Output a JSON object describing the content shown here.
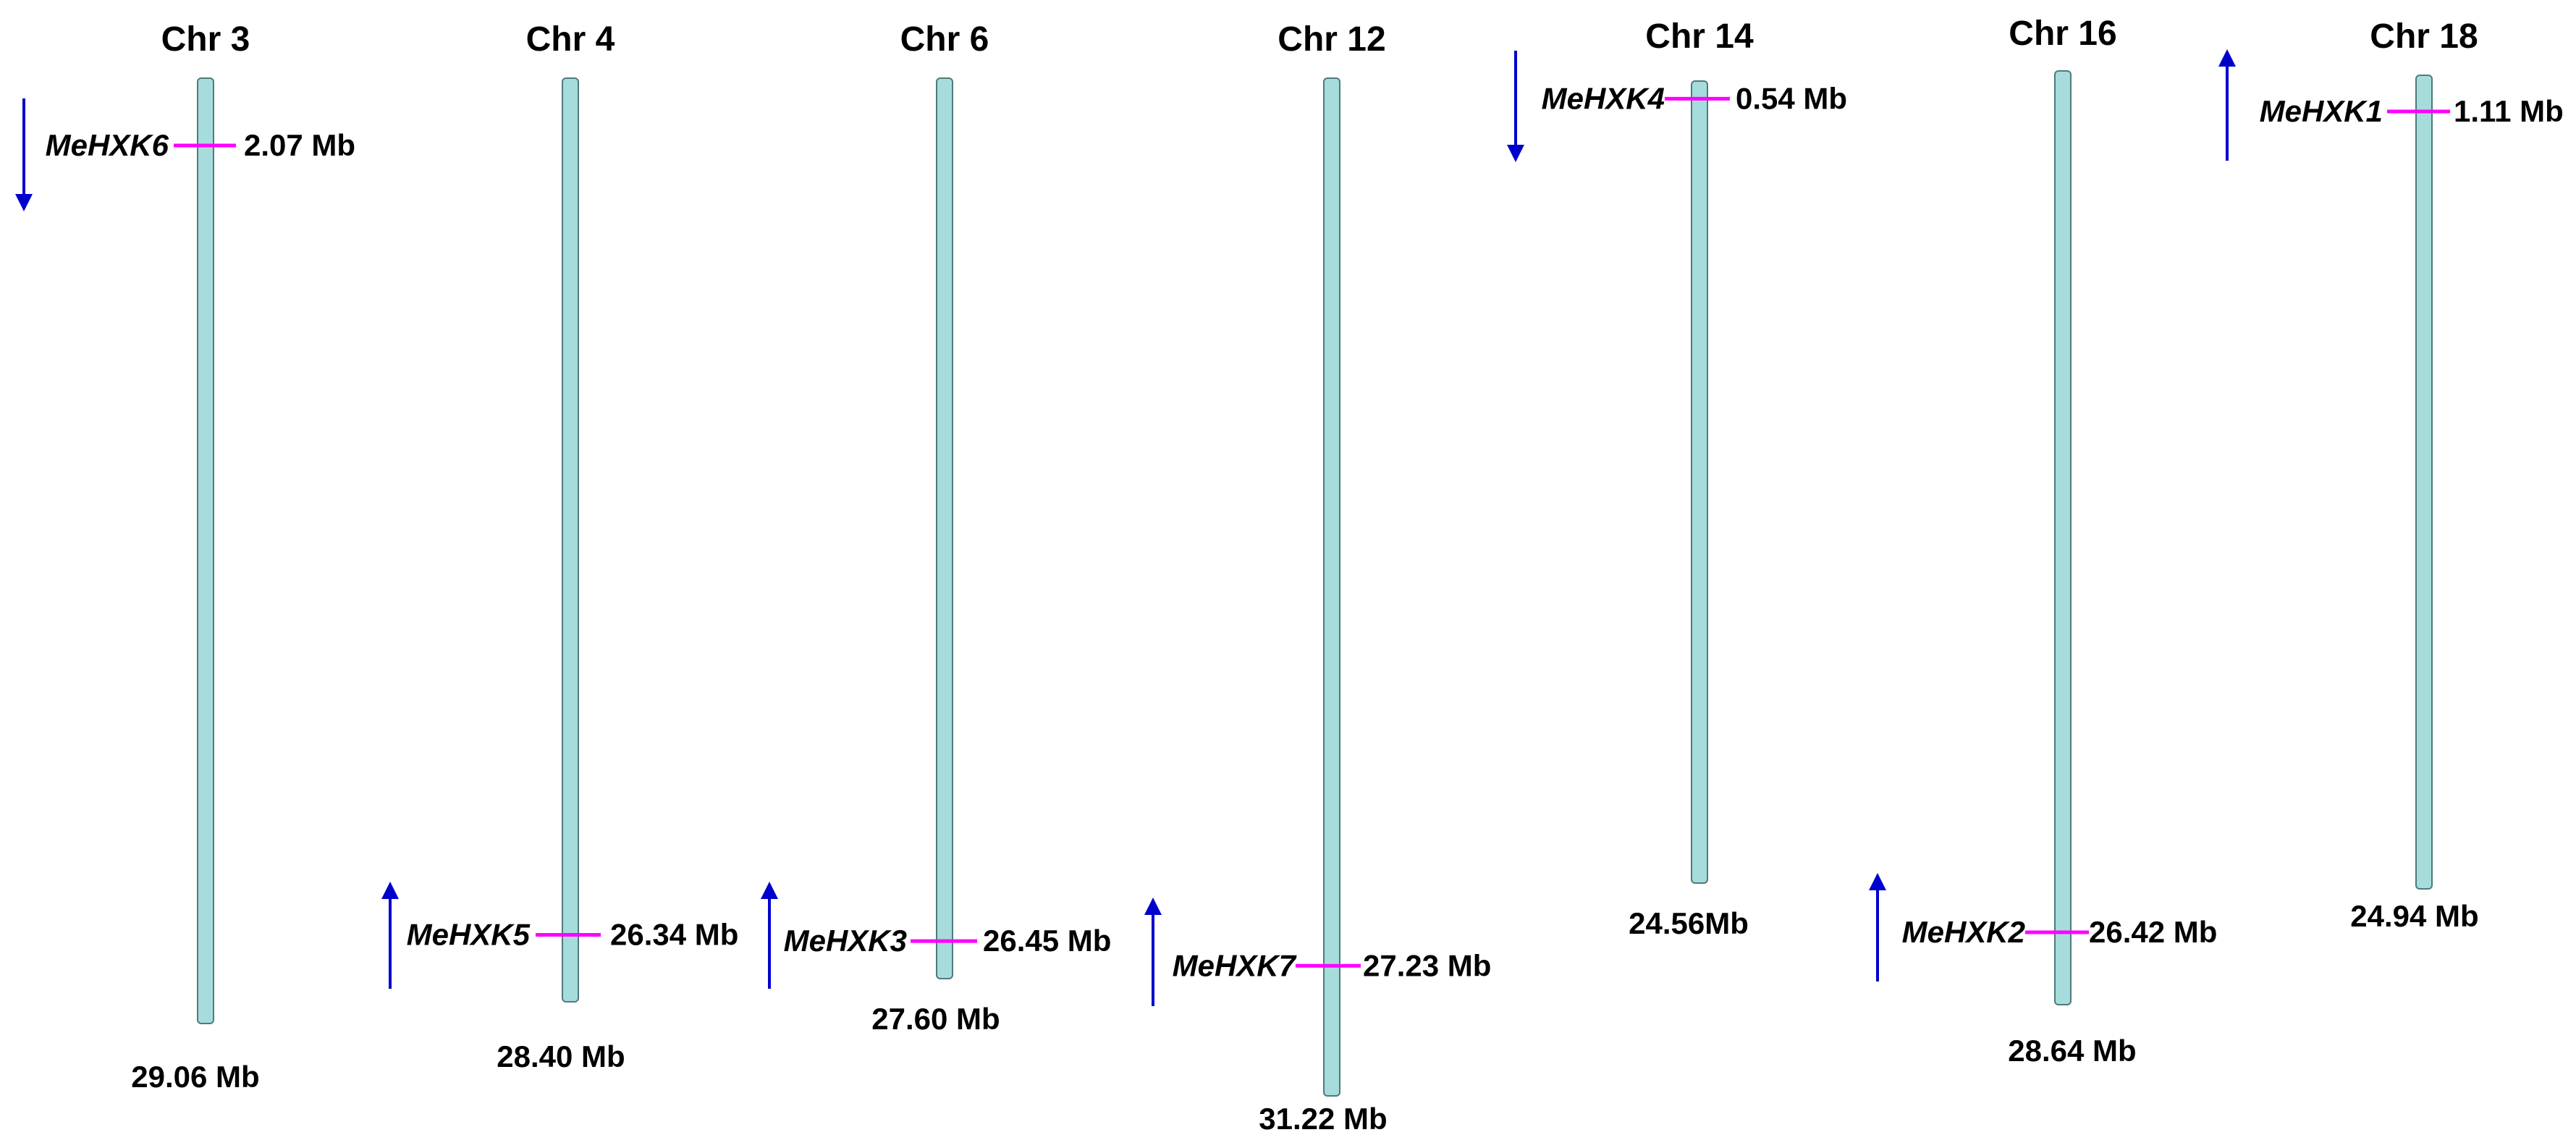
{
  "colors": {
    "chromosome_fill": "#A6DCDC",
    "chromosome_stroke": "#4F7A7A",
    "gene_marker": "#FF00FF",
    "arrow": "#0000CC",
    "text": "#000000"
  },
  "chromosomes": [
    {
      "id": "chr3",
      "name": "Chr 3",
      "length_label": "29.06 Mb",
      "length_mb": 29.06,
      "genes": [
        {
          "name": "MeHXK6",
          "position_label": "2.07 Mb",
          "position_mb": 2.07,
          "strand": "down"
        }
      ]
    },
    {
      "id": "chr4",
      "name": "Chr 4",
      "length_label": "28.40 Mb",
      "length_mb": 28.4,
      "genes": [
        {
          "name": "MeHXK5",
          "position_label": "26.34 Mb",
          "position_mb": 26.34,
          "strand": "up"
        }
      ]
    },
    {
      "id": "chr6",
      "name": "Chr 6",
      "length_label": "27.60 Mb",
      "length_mb": 27.6,
      "genes": [
        {
          "name": "MeHXK3",
          "position_label": "26.45 Mb",
          "position_mb": 26.45,
          "strand": "up"
        }
      ]
    },
    {
      "id": "chr12",
      "name": "Chr 12",
      "length_label": "31.22 Mb",
      "length_mb": 31.22,
      "genes": [
        {
          "name": "MeHXK7",
          "position_label": "27.23 Mb",
          "position_mb": 27.23,
          "strand": "up"
        }
      ]
    },
    {
      "id": "chr14",
      "name": "Chr 14",
      "length_label": "24.56Mb",
      "length_mb": 24.56,
      "genes": [
        {
          "name": "MeHXK4",
          "position_label": "0.54 Mb",
          "position_mb": 0.54,
          "strand": "down"
        }
      ]
    },
    {
      "id": "chr16",
      "name": "Chr 16",
      "length_label": "28.64 Mb",
      "length_mb": 28.64,
      "genes": [
        {
          "name": "MeHXK2",
          "position_label": "26.42 Mb",
          "position_mb": 26.42,
          "strand": "up"
        }
      ]
    },
    {
      "id": "chr18",
      "name": "Chr 18",
      "length_label": "24.94 Mb",
      "length_mb": 24.94,
      "genes": [
        {
          "name": "MeHXK1",
          "position_label": "1.11 Mb",
          "position_mb": 1.11,
          "strand": "up"
        }
      ]
    }
  ]
}
